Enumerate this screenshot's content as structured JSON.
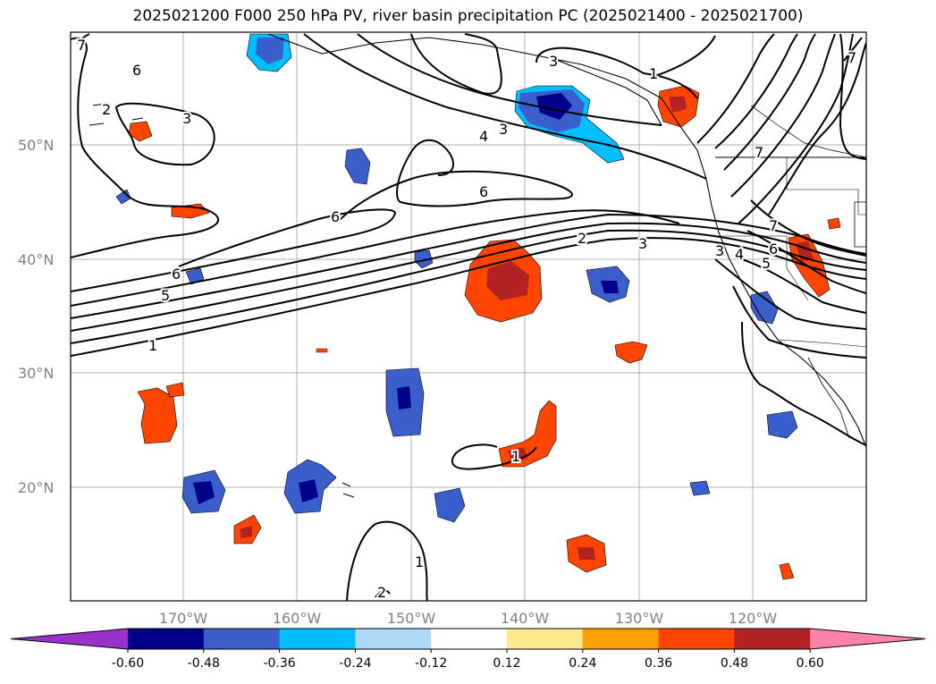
{
  "title": "2025021200 F000 250 hPa PV, river basin precipitation PC (2025021400 - 2025021700)",
  "map": {
    "lat_labels": [
      "50°N",
      "40°N",
      "30°N",
      "20°N"
    ],
    "lon_labels": [
      "170°W",
      "160°W",
      "150°W",
      "140°W",
      "130°W",
      "120°W"
    ],
    "pv_contour_labels": [
      "6",
      "3",
      "6",
      "6",
      "6",
      "5",
      "1",
      "7",
      "7",
      "2",
      "3",
      "4",
      "3",
      "1",
      "3",
      "2",
      "3",
      "4",
      "5",
      "6",
      "7",
      "7",
      "1",
      "1",
      "2"
    ],
    "contour_color": "#000000",
    "gridline_color": "#b0b0b0",
    "coastline_color": "#000000"
  },
  "colorbar": {
    "ticks": [
      "-0.60",
      "-0.48",
      "-0.36",
      "-0.24",
      "-0.12",
      "0.12",
      "0.24",
      "0.36",
      "0.48",
      "0.60"
    ],
    "colors": [
      "#9932cc",
      "#00008b",
      "#3a5fcd",
      "#00bfff",
      "#add8f6",
      "#ffffff",
      "#ffe88c",
      "#ffa000",
      "#ff4500",
      "#b22222",
      "#ff82ab"
    ],
    "extend": "both"
  }
}
